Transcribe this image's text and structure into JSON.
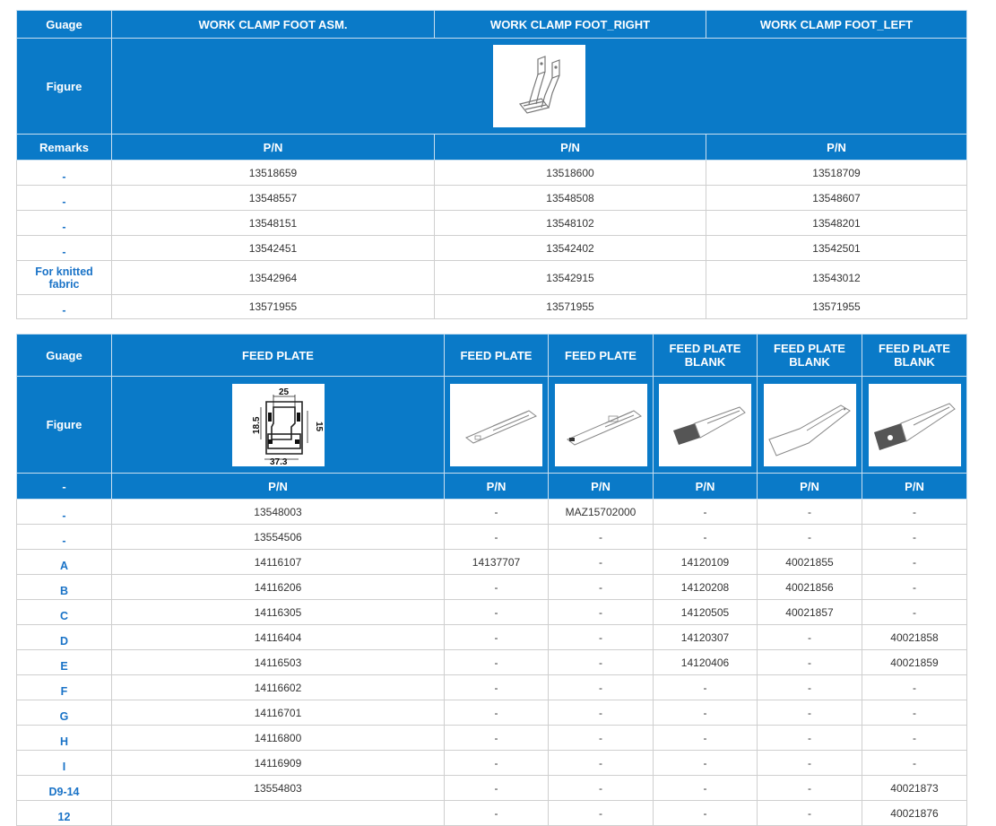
{
  "clamp_table": {
    "headers": [
      "Guage",
      "WORK CLAMP FOOT ASM.",
      "WORK CLAMP FOOT_RIGHT",
      "WORK CLAMP FOOT_LEFT"
    ],
    "figure_label": "Figure",
    "pn_header": [
      "Remarks",
      "P/N",
      "P/N",
      "P/N"
    ],
    "rows": [
      [
        "-",
        "13518659",
        "13518600",
        "13518709"
      ],
      [
        "-",
        "13548557",
        "13548508",
        "13548607"
      ],
      [
        "-",
        "13548151",
        "13548102",
        "13548201"
      ],
      [
        "-",
        "13542451",
        "13542402",
        "13542501"
      ],
      [
        "For knitted fabric",
        "13542964",
        "13542915",
        "13543012"
      ],
      [
        "-",
        "13571955",
        "13571955",
        "13571955"
      ]
    ]
  },
  "feed_table": {
    "headers": [
      "Guage",
      "FEED PLATE",
      "FEED PLATE",
      "FEED PLATE",
      "FEED PLATE BLANK",
      "FEED PLATE BLANK",
      "FEED PLATE BLANK"
    ],
    "figure_label": "Figure",
    "drawing_dims": [
      "25",
      "18.5",
      "15",
      "37.3"
    ],
    "pn_header": [
      "-",
      "P/N",
      "P/N",
      "P/N",
      "P/N",
      "P/N",
      "P/N"
    ],
    "rows": [
      [
        "-",
        "13548003",
        "-",
        "MAZ15702000",
        "-",
        "-",
        "-"
      ],
      [
        "-",
        "13554506",
        "-",
        "-",
        "-",
        "-",
        "-"
      ],
      [
        "A",
        "14116107",
        "14137707",
        "-",
        "14120109",
        "40021855",
        "-"
      ],
      [
        "B",
        "14116206",
        "-",
        "-",
        "14120208",
        "40021856",
        "-"
      ],
      [
        "C",
        "14116305",
        "-",
        "-",
        "14120505",
        "40021857",
        "-"
      ],
      [
        "D",
        "14116404",
        "-",
        "-",
        "14120307",
        "-",
        "40021858"
      ],
      [
        "E",
        "14116503",
        "-",
        "-",
        "14120406",
        "-",
        "40021859"
      ],
      [
        "F",
        "14116602",
        "-",
        "-",
        "-",
        "-",
        "-"
      ],
      [
        "G",
        "14116701",
        "-",
        "-",
        "-",
        "-",
        "-"
      ],
      [
        "H",
        "14116800",
        "-",
        "-",
        "-",
        "-",
        "-"
      ],
      [
        "I",
        "14116909",
        "-",
        "-",
        "-",
        "-",
        "-"
      ],
      [
        "D9-14",
        "13554803",
        "-",
        "-",
        "-",
        "-",
        "40021873"
      ],
      [
        "12",
        "",
        "-",
        "-",
        "-",
        "-",
        "40021876"
      ]
    ]
  },
  "colors": {
    "header_bg": "#0a7ac8",
    "remark_text": "#1a73c7",
    "border": "#cfcfcf"
  }
}
